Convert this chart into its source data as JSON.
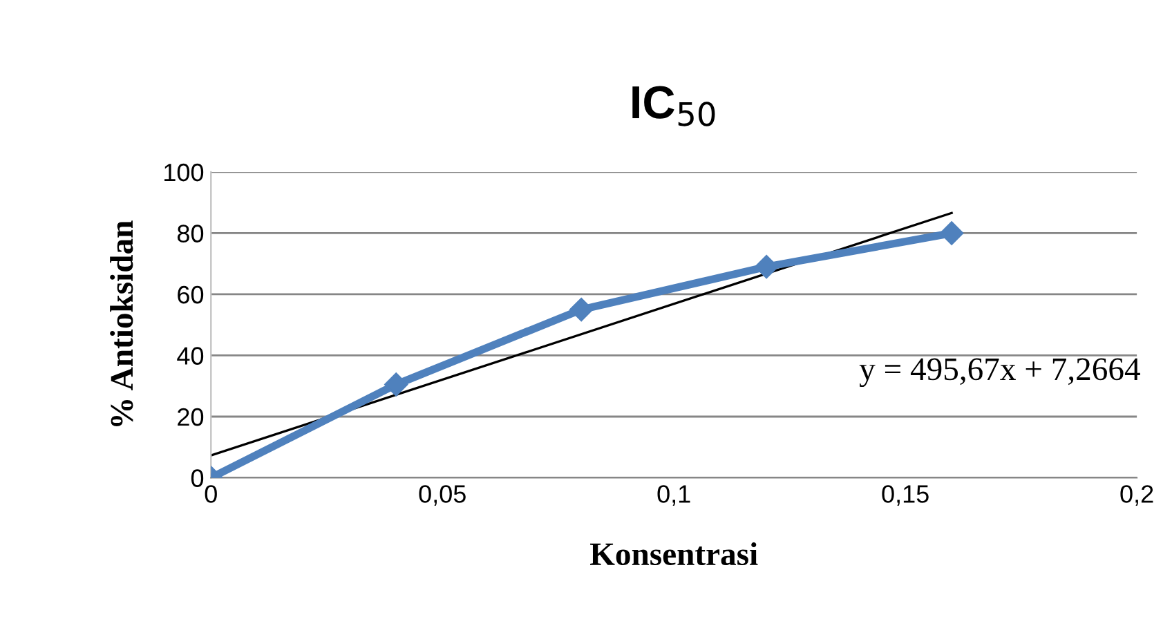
{
  "chart_data": {
    "type": "line",
    "title": "IC$_{50}$",
    "xlabel": "Konsentrasi",
    "ylabel": "% Antioksidan",
    "x": [
      0,
      0.04,
      0.08,
      0.12,
      0.16
    ],
    "series": [
      {
        "color": "#4f81bd",
        "values": [
          0,
          30.5,
          55,
          69,
          80
        ],
        "marker": "diamond"
      },
      {
        "type": "line",
        "color": "#000000",
        "x": [
          0,
          0.16
        ],
        "values": [
          7.3,
          86.6
        ],
        "marker": "none"
      }
    ],
    "annotations": [
      "y = 495,67x + 7,2664"
    ],
    "xlim": [
      0,
      0.2
    ],
    "xticks": [
      0,
      {
        "value": 0.05,
        "label": "0,05"
      },
      {
        "value": 0.1,
        "label": "0,1"
      },
      {
        "value": 0.15,
        "label": "0,15"
      },
      {
        "value": 0.2,
        "label": "0,2"
      }
    ],
    "ylim": [
      0,
      100
    ],
    "yticks": [
      0,
      20,
      40,
      60,
      80,
      100
    ],
    "grid": "y",
    "legend": false,
    "line_style": "solid"
  }
}
